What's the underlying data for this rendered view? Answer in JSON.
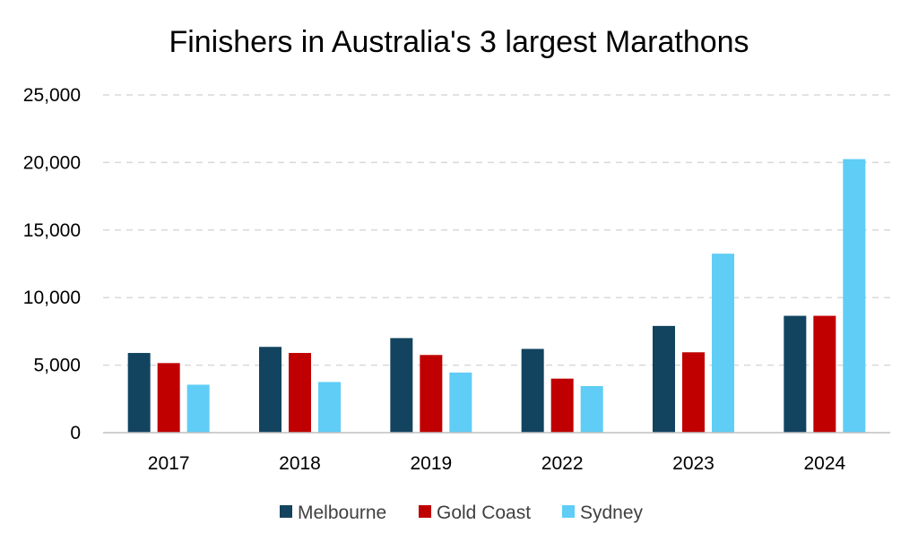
{
  "chart_data": {
    "type": "bar",
    "title": "Finishers in Australia's 3 largest Marathons",
    "xlabel": "",
    "ylabel": "",
    "categories": [
      "2017",
      "2018",
      "2019",
      "2022",
      "2023",
      "2024"
    ],
    "series": [
      {
        "name": "Melbourne",
        "color": "#12445f",
        "values": [
          5900,
          6350,
          7000,
          6200,
          7900,
          8650
        ]
      },
      {
        "name": "Gold Coast",
        "color": "#c00000",
        "values": [
          5150,
          5900,
          5750,
          4000,
          5950,
          8650
        ]
      },
      {
        "name": "Sydney",
        "color": "#5fcdf5",
        "values": [
          3550,
          3750,
          4450,
          3450,
          13250,
          20250
        ]
      }
    ],
    "ylim": [
      0,
      25000
    ],
    "yticks": [
      "0",
      "5,000",
      "10,000",
      "15,000",
      "20,000",
      "25,000"
    ],
    "ytick_values": [
      0,
      5000,
      10000,
      15000,
      20000,
      25000
    ],
    "grid": true,
    "legend_position": "bottom"
  }
}
